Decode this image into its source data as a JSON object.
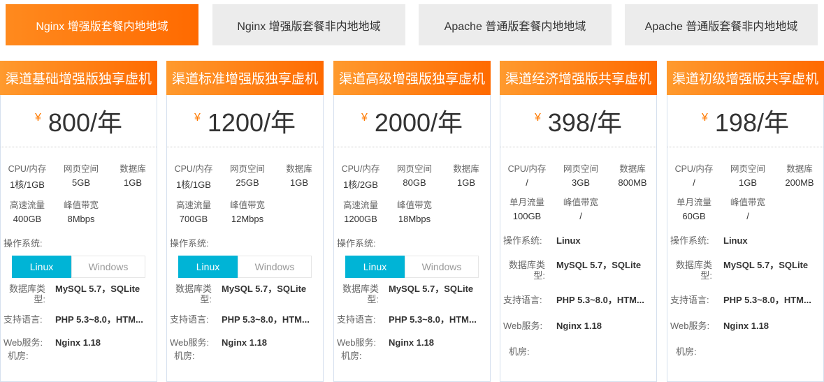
{
  "tabs": [
    {
      "label": "Nginx 增强版套餐内地地域",
      "active": true
    },
    {
      "label": "Nginx 增强版套餐非内地地域"
    },
    {
      "label": "Apache 普通版套餐内地地域"
    },
    {
      "label": "Apache 普通版套餐非内地地域"
    }
  ],
  "labels": {
    "cpu": "CPU/内存",
    "web": "网页空间",
    "db": "数据库",
    "peak": "峰值带宽",
    "os": "操作系统:",
    "dbtype": "数据库类型:",
    "lang": "支持语言:",
    "websvc": "Web服务:",
    "room": "机房:",
    "currency": "¥"
  },
  "cards": [
    {
      "title": "渠道基础增强版独享虚机",
      "price": "800/年",
      "cpu": "1核/1GB",
      "web": "5GB",
      "db": "1GB",
      "traffic_label": "高速流量",
      "traffic": "400GB",
      "peak": "8Mbps",
      "os_options": [
        "Linux",
        "Windows"
      ],
      "dbtype": "MySQL 5.7，SQLite",
      "lang": "PHP 5.3~8.0，HTM...",
      "websvc": "Nginx 1.18"
    },
    {
      "title": "渠道标准增强版独享虚机",
      "price": "1200/年",
      "cpu": "1核/1GB",
      "web": "25GB",
      "db": "1GB",
      "traffic_label": "高速流量",
      "traffic": "700GB",
      "peak": "12Mbps",
      "os_options": [
        "Linux",
        "Windows"
      ],
      "dbtype": "MySQL 5.7，SQLite",
      "lang": "PHP 5.3~8.0，HTM...",
      "websvc": "Nginx 1.18"
    },
    {
      "title": "渠道高级增强版独享虚机",
      "price": "2000/年",
      "cpu": "1核/2GB",
      "web": "80GB",
      "db": "1GB",
      "traffic_label": "高速流量",
      "traffic": "1200GB",
      "peak": "18Mbps",
      "os_options": [
        "Linux",
        "Windows"
      ],
      "dbtype": "MySQL 5.7，SQLite",
      "lang": "PHP 5.3~8.0，HTM...",
      "websvc": "Nginx 1.18"
    },
    {
      "title": "渠道经济增强版共享虚机",
      "price": "398/年",
      "cpu": "/",
      "web": "3GB",
      "db": "800MB",
      "traffic_label": "单月流量",
      "traffic": "100GB",
      "peak": "/",
      "os": "Linux",
      "dbtype": "MySQL 5.7，SQLite",
      "lang": "PHP 5.3~8.0，HTM...",
      "websvc": "Nginx 1.18"
    },
    {
      "title": "渠道初级增强版共享虚机",
      "price": "198/年",
      "cpu": "/",
      "web": "1GB",
      "db": "200MB",
      "traffic_label": "单月流量",
      "traffic": "60GB",
      "peak": "/",
      "os": "Linux",
      "dbtype": "MySQL 5.7，SQLite",
      "lang": "PHP 5.3~8.0，HTM...",
      "websvc": "Nginx 1.18"
    }
  ]
}
